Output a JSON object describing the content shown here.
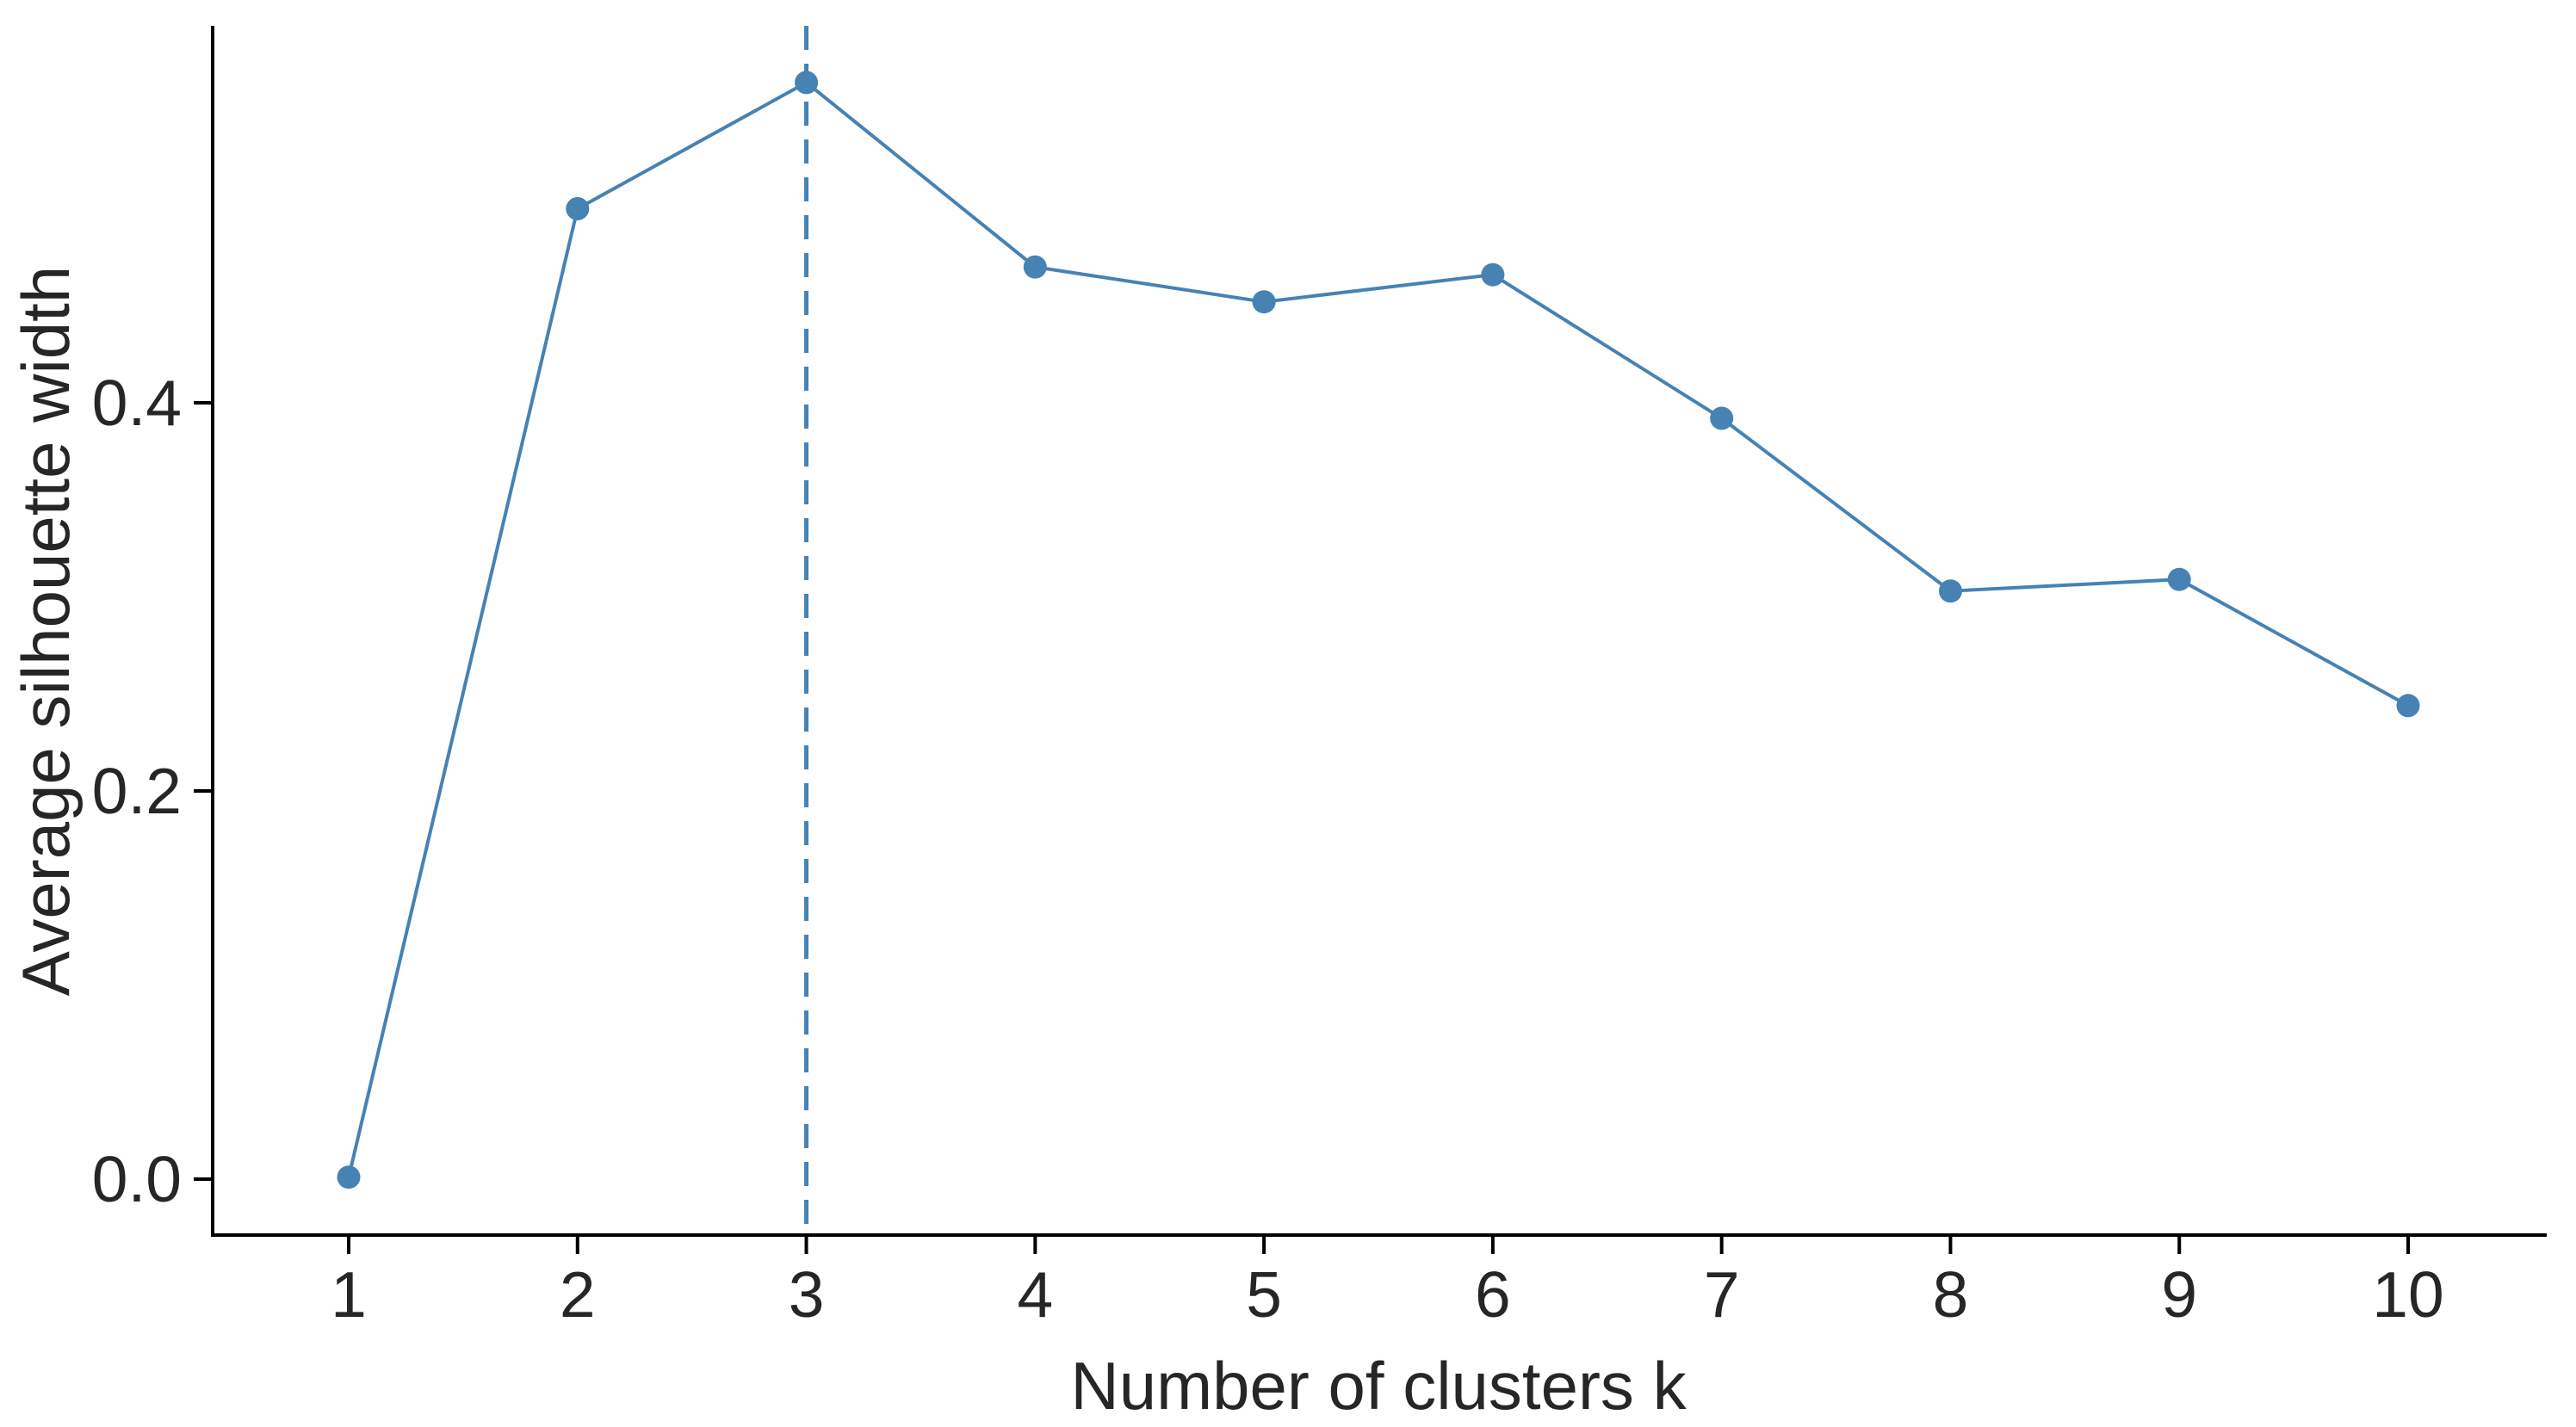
{
  "chart_data": {
    "type": "line",
    "title": "",
    "xlabel": "Number of clusters k",
    "ylabel": "Average silhouette width",
    "x": [
      1,
      2,
      3,
      4,
      5,
      6,
      7,
      8,
      9,
      10
    ],
    "x_tick_labels": [
      "1",
      "2",
      "3",
      "4",
      "5",
      "6",
      "7",
      "8",
      "9",
      "10"
    ],
    "series": [
      {
        "name": "average-silhouette-width",
        "values": [
          0.001,
          0.5,
          0.565,
          0.47,
          0.452,
          0.466,
          0.392,
          0.303,
          0.309,
          0.244
        ]
      }
    ],
    "y_ticks": [
      0.0,
      0.2,
      0.4
    ],
    "y_tick_labels": [
      "0.0",
      "0.2",
      "0.4"
    ],
    "ylim": [
      -0.029,
      0.594
    ],
    "xlim": [
      0.4,
      10.6
    ],
    "optimal_k": 3,
    "vline_x": 3,
    "vline_style": "dashed",
    "grid": false,
    "legend": "none",
    "marker": "circle",
    "colors": {
      "line": "#4682B4",
      "point": "#4682B4",
      "vline": "#4682B4",
      "axis": "#000000",
      "text": "#262626"
    }
  }
}
